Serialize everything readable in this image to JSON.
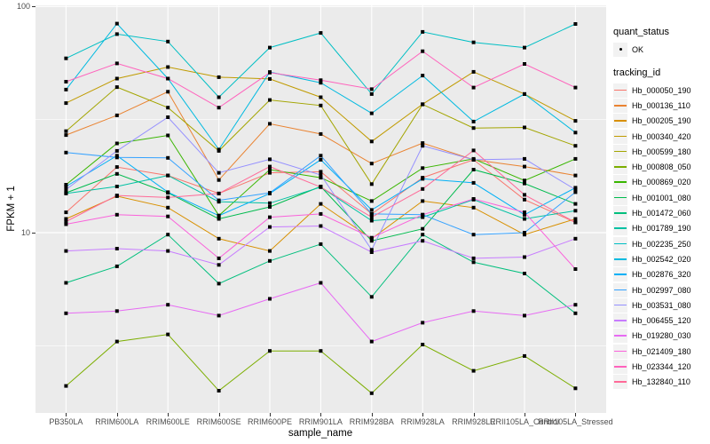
{
  "figure": {
    "panel_bg": "#EBEBEB",
    "gridline_color": "#FFFFFF",
    "marker_color": "#000000",
    "tick_color": "#333333",
    "tick_label_color": "#4D4D4D"
  },
  "legend": {
    "quant_status_title": "quant_status",
    "quant_status_items": [
      {
        "label": "OK"
      }
    ],
    "tracking_title": "tracking_id"
  },
  "chart_data": {
    "type": "line",
    "title": "",
    "xlabel": "sample_name",
    "ylabel": "FPKM + 1",
    "y_scale": "log10",
    "ylim": [
      1.6,
      105
    ],
    "y_major_ticks": [
      {
        "label": "100",
        "value": 100
      },
      {
        "label": "10",
        "value": 10
      }
    ],
    "y_minor_ticks": [
      31.6,
      3.16
    ],
    "grid": true,
    "legend_position": "right",
    "point_marker": "small black square (quant_status OK)",
    "categories": [
      "PB350LA",
      "RRIM600LA",
      "RRIM600LE",
      "RRIM600SE",
      "RRIM600PE",
      "RRIM901LA",
      "RRIM928BA",
      "RRIM928LA",
      "RRIM928LE",
      "RRII105LA_Control",
      "RRII105LA_Stressed"
    ],
    "series": [
      {
        "name": "Hb_000050_190",
        "color": "#F8766D",
        "values": [
          12.3,
          19.5,
          17.9,
          14.9,
          18.4,
          18.6,
          12.1,
          17.5,
          21.0,
          14.0,
          11.1
        ]
      },
      {
        "name": "Hb_000136_110",
        "color": "#EA8331",
        "values": [
          27,
          33,
          42,
          17.1,
          30.3,
          27.3,
          20.2,
          24.9,
          21,
          19.6,
          17.9
        ]
      },
      {
        "name": "Hb_000205_190",
        "color": "#D89000",
        "values": [
          11.5,
          14.5,
          12.9,
          9.4,
          8.3,
          13.4,
          9.4,
          13.8,
          12.9,
          9.8,
          11.5
        ]
      },
      {
        "name": "Hb_000340_420",
        "color": "#C09B00",
        "values": [
          37.4,
          48,
          54,
          48.7,
          47.8,
          39.7,
          25.3,
          37,
          51.4,
          41,
          31.2
        ]
      },
      {
        "name": "Hb_000599_180",
        "color": "#A3A500",
        "values": [
          28.1,
          44,
          35.7,
          23,
          38.6,
          36.5,
          16.4,
          36.9,
          29,
          29.2,
          24.2
        ]
      },
      {
        "name": "Hb_000808_050",
        "color": "#7CAE00",
        "values": [
          2.1,
          3.3,
          3.55,
          2.0,
          3.0,
          3.0,
          1.95,
          3.2,
          2.45,
          2.85,
          2.05
        ]
      },
      {
        "name": "Hb_000869_020",
        "color": "#39B600",
        "values": [
          16.3,
          24.8,
          26.9,
          11.9,
          19,
          17.5,
          13.8,
          19.3,
          21.2,
          17,
          21.2
        ]
      },
      {
        "name": "Hb_001001_080",
        "color": "#00BB4E",
        "values": [
          15,
          18.2,
          15,
          11.5,
          13,
          16,
          9.2,
          10.4,
          19,
          16.5,
          13.4
        ]
      },
      {
        "name": "Hb_001472_060",
        "color": "#00BF7D",
        "values": [
          6.0,
          7.1,
          9.8,
          5.95,
          7.5,
          8.9,
          5.2,
          9.8,
          7.4,
          6.6,
          4.4
        ]
      },
      {
        "name": "Hb_001789_190",
        "color": "#00C1A3",
        "values": [
          14.9,
          16,
          17.9,
          13.7,
          13.5,
          15.9,
          11.3,
          11.7,
          14,
          11.5,
          12.5
        ]
      },
      {
        "name": "Hb_002235_250",
        "color": "#00BFC4",
        "values": [
          59,
          75.5,
          70,
          39.7,
          65.8,
          76.4,
          41,
          77.2,
          69.4,
          65.8,
          83.7
        ]
      },
      {
        "name": "Hb_002542_020",
        "color": "#00BAE0",
        "values": [
          42.9,
          84,
          48,
          23.3,
          51.3,
          46,
          33.7,
          49.5,
          31,
          41,
          27.7
        ]
      },
      {
        "name": "Hb_002876_320",
        "color": "#00B0F6",
        "values": [
          16,
          21.9,
          15.1,
          11.9,
          14.9,
          21,
          12.6,
          17.3,
          16.6,
          12,
          15.8
        ]
      },
      {
        "name": "Hb_002997_080",
        "color": "#35A2FF",
        "values": [
          22.6,
          21.5,
          21.4,
          13.9,
          15,
          21.9,
          12.1,
          12,
          9.8,
          10,
          15.1
        ]
      },
      {
        "name": "Hb_003531_080",
        "color": "#9590FF",
        "values": [
          15.5,
          23,
          32.4,
          18.4,
          21.1,
          18,
          8.4,
          24.2,
          21,
          21.2,
          15.5
        ]
      },
      {
        "name": "Hb_006455_120",
        "color": "#C77CFF",
        "values": [
          8.3,
          8.5,
          8.3,
          7.2,
          10.6,
          10.7,
          8.2,
          9.2,
          7.7,
          7.8,
          9.4
        ]
      },
      {
        "name": "Hb_019280_030",
        "color": "#E76BF3",
        "values": [
          4.4,
          4.5,
          4.8,
          4.3,
          5.1,
          6.0,
          3.3,
          4.0,
          4.5,
          4.3,
          4.8
        ]
      },
      {
        "name": "Hb_021409_180",
        "color": "#FA62DB",
        "values": [
          10.9,
          12,
          11.8,
          7.7,
          11.7,
          12.1,
          9.5,
          12,
          14.1,
          12.3,
          6.9
        ]
      },
      {
        "name": "Hb_023344_120",
        "color": "#FF62BC",
        "values": [
          46.5,
          56,
          48,
          35.7,
          51,
          47.2,
          43.1,
          63.4,
          43.8,
          55.7,
          43.8
        ]
      },
      {
        "name": "Hb_132840_110",
        "color": "#FF6A98",
        "values": [
          11.2,
          14.6,
          14.3,
          14.9,
          19.6,
          15.9,
          11.7,
          15.6,
          23.1,
          14.7,
          11.1
        ]
      }
    ]
  }
}
